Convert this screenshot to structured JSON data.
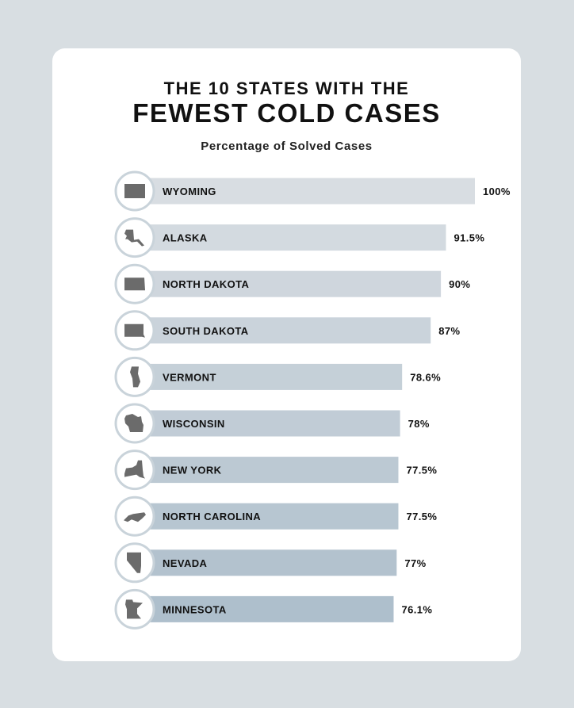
{
  "header": {
    "title_line1": "THE 10 STATES WITH THE",
    "title_line2": "FEWEST COLD CASES",
    "subtitle": "Percentage of Solved Cases"
  },
  "colors": {
    "background": "#d8dee2",
    "card": "#ffffff",
    "bar_top": "#d8dde2",
    "bar_bottom": "#aebfcc",
    "icon_ring": "#c9d3da",
    "icon_fill": "#6b6b6b"
  },
  "chart_data": {
    "type": "bar",
    "orientation": "horizontal",
    "title": "THE 10 STATES WITH THE FEWEST COLD CASES",
    "subtitle": "Percentage of Solved Cases",
    "categories": [
      "WYOMING",
      "ALASKA",
      "NORTH DAKOTA",
      "SOUTH DAKOTA",
      "VERMONT",
      "WISCONSIN",
      "NEW YORK",
      "NORTH CAROLINA",
      "NEVADA",
      "MINNESOTA"
    ],
    "values": [
      100,
      91.5,
      90,
      87,
      78.6,
      78,
      77.5,
      77.5,
      77,
      76.1
    ],
    "value_labels": [
      "100%",
      "91.5%",
      "90%",
      "87%",
      "78.6%",
      "78%",
      "77.5%",
      "77.5%",
      "77%",
      "76.1%"
    ],
    "icons": [
      "wyoming-icon",
      "alaska-icon",
      "north-dakota-icon",
      "south-dakota-icon",
      "vermont-icon",
      "wisconsin-icon",
      "new-york-icon",
      "north-carolina-icon",
      "nevada-icon",
      "minnesota-icon"
    ],
    "xlim": [
      0,
      100
    ],
    "grid": false,
    "legend": "none"
  }
}
